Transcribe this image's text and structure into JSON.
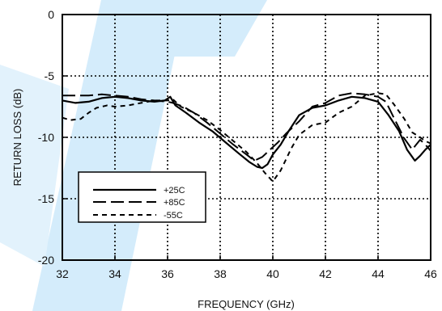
{
  "chart_data": {
    "type": "line",
    "title": "",
    "xlabel": "FREQUENCY (GHz)",
    "ylabel": "RETURN LOSS (dB)",
    "xlim": [
      32,
      46
    ],
    "ylim": [
      -20,
      0
    ],
    "xticks": [
      32,
      34,
      36,
      38,
      40,
      42,
      44,
      46
    ],
    "yticks": [
      0,
      -5,
      -10,
      -15,
      -20
    ],
    "grid": true,
    "legend_position": "lower-left",
    "colors": {
      "line": "#000000",
      "grid": "#000000",
      "watermark": "#d4ecfb"
    },
    "series": [
      {
        "name": "+25C",
        "style": "solid",
        "x": [
          32,
          32.5,
          33,
          33.5,
          34,
          34.5,
          35,
          35.5,
          35.9,
          36.1,
          36.3,
          36.7,
          37.2,
          37.7,
          38.2,
          38.7,
          39.1,
          39.4,
          39.6,
          39.8,
          40,
          40.3,
          40.6,
          41,
          41.5,
          42,
          42.5,
          43,
          43.5,
          44,
          44.4,
          44.8,
          45.1,
          45.4,
          45.6,
          45.8,
          46
        ],
        "y": [
          -7.0,
          -7.2,
          -7.1,
          -6.8,
          -6.7,
          -6.8,
          -7.0,
          -7.1,
          -7.0,
          -6.7,
          -7.4,
          -8.0,
          -8.8,
          -9.5,
          -10.4,
          -11.3,
          -12.0,
          -12.4,
          -12.5,
          -12.2,
          -11.4,
          -10.6,
          -9.5,
          -8.2,
          -7.6,
          -7.4,
          -7.0,
          -6.7,
          -6.8,
          -7.1,
          -8.2,
          -9.5,
          -11.0,
          -11.9,
          -11.5,
          -11.0,
          -10.6
        ]
      },
      {
        "name": "+85C",
        "style": "long-dash",
        "x": [
          32,
          32.5,
          33,
          33.5,
          34,
          34.5,
          35,
          35.5,
          36,
          36.2,
          36.6,
          37,
          37.5,
          38,
          38.5,
          39,
          39.3,
          39.6,
          39.9,
          40.2,
          40.5,
          41,
          41.5,
          42,
          42.5,
          43,
          43.5,
          44,
          44.3,
          44.6,
          45,
          45.3,
          45.6,
          45.8,
          46
        ],
        "y": [
          -6.6,
          -6.6,
          -6.6,
          -6.5,
          -6.6,
          -6.7,
          -6.9,
          -7.0,
          -7.1,
          -7.2,
          -7.5,
          -8.0,
          -8.8,
          -9.7,
          -10.6,
          -11.4,
          -11.9,
          -11.6,
          -11.0,
          -10.4,
          -9.7,
          -8.7,
          -7.5,
          -7.2,
          -6.6,
          -6.4,
          -6.5,
          -6.7,
          -7.1,
          -8.4,
          -10.1,
          -11.0,
          -10.2,
          -10.6,
          -11.1
        ]
      },
      {
        "name": "-55C",
        "style": "short-dash",
        "x": [
          32,
          32.3,
          32.7,
          33,
          33.3,
          33.7,
          34,
          34.5,
          35,
          35.5,
          36,
          36.2,
          36.5,
          37,
          37.5,
          38,
          38.5,
          39,
          39.4,
          39.7,
          40,
          40.3,
          40.7,
          41,
          41.5,
          42,
          42.5,
          43,
          43.5,
          44,
          44.3,
          44.6,
          45,
          45.3,
          45.6,
          45.8,
          46
        ],
        "y": [
          -8.4,
          -8.6,
          -8.5,
          -8.0,
          -7.6,
          -7.4,
          -7.5,
          -7.4,
          -7.2,
          -7.0,
          -7.0,
          -6.9,
          -7.5,
          -8.0,
          -8.6,
          -9.4,
          -10.3,
          -11.2,
          -12.1,
          -12.9,
          -13.6,
          -12.7,
          -10.9,
          -9.8,
          -9.0,
          -8.8,
          -8.0,
          -7.5,
          -6.6,
          -6.4,
          -6.5,
          -7.3,
          -8.5,
          -9.6,
          -10.0,
          -10.3,
          -10.5
        ]
      }
    ]
  }
}
